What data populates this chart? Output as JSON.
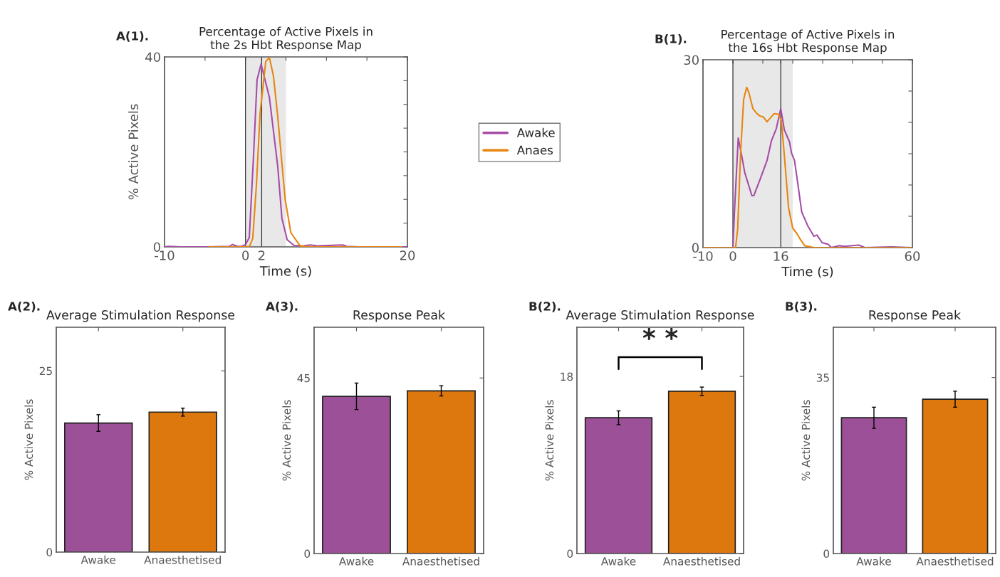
{
  "chart_data": [
    {
      "type": "line",
      "title": "Percentage of Active Pixels in\nthe 2s Hbt Response Map",
      "xlabel": "Time (s)",
      "ylabel": "% Active Pixels",
      "annotations": [
        "A(1)."
      ],
      "xlim": [
        -10,
        20
      ],
      "xticks": [
        -10,
        {
          "value": -5,
          "label": null
        },
        0,
        2,
        {
          "value": 5,
          "label": null
        },
        {
          "value": 10,
          "label": null
        },
        {
          "value": 15,
          "label": null
        },
        20
      ],
      "ylim": [
        0,
        40
      ],
      "yticks": [
        0,
        {
          "value": 5,
          "label": null
        },
        {
          "value": 10,
          "label": null
        },
        {
          "value": 15,
          "label": null
        },
        {
          "value": 20,
          "label": null
        },
        {
          "value": 25,
          "label": null
        },
        {
          "value": 30,
          "label": null
        },
        {
          "value": 35,
          "label": null
        },
        40
      ],
      "grid": false,
      "legend": "right",
      "ref_lines": [
        {
          "axis": "x",
          "value": 0,
          "color": "#333333"
        },
        {
          "axis": "x",
          "value": 2,
          "color": "#333333"
        }
      ],
      "bands": [
        {
          "axis": "x",
          "from": 0,
          "to": 5,
          "color": "#e8e8e8"
        }
      ],
      "series": [
        {
          "name": "Awake",
          "color": "#a64ca6",
          "x": [
            -10,
            -9.5,
            -8,
            -5,
            -2,
            -1.6,
            -1,
            -0.5,
            0,
            0.47,
            0.96,
            1.43,
            1.93,
            2.95,
            3.98,
            4.5,
            5.15,
            6,
            7,
            8,
            9,
            12,
            12.5,
            14,
            20
          ],
          "values": [
            0,
            0.1,
            0,
            0,
            0.1,
            0.5,
            0.1,
            0.1,
            0.5,
            2,
            18,
            35.2,
            38.5,
            31.5,
            17,
            6,
            1.5,
            0.3,
            0.2,
            0.4,
            0.2,
            0.4,
            0.1,
            0,
            0
          ]
        },
        {
          "name": "Anaes",
          "color": "#e8850f",
          "x": [
            -4.5,
            0,
            0.5,
            0.9,
            1.35,
            1.8,
            2.5,
            2.95,
            3.45,
            3.98,
            4.9,
            5.6,
            6.75,
            8,
            19.3
          ],
          "values": [
            0,
            0,
            0.1,
            1.8,
            13,
            28,
            39,
            39.9,
            36,
            27.5,
            10,
            3,
            0.2,
            0,
            0
          ]
        }
      ]
    },
    {
      "type": "line",
      "title": "Percentage of Active Pixels in\nthe 16s Hbt Response Map",
      "xlabel": "Time (s)",
      "annotations": [
        "B(1)."
      ],
      "xlim": [
        -10,
        60
      ],
      "xticks": [
        -10,
        0,
        {
          "value": 10,
          "label": null
        },
        16,
        {
          "value": 20,
          "label": null
        },
        {
          "value": 30,
          "label": null
        },
        {
          "value": 40,
          "label": null
        },
        {
          "value": 50,
          "label": null
        },
        60
      ],
      "ylim": [
        0,
        30
      ],
      "yticks": [
        0,
        {
          "value": 5,
          "label": null
        },
        {
          "value": 10,
          "label": null
        },
        {
          "value": 15,
          "label": null
        },
        {
          "value": 20,
          "label": null
        },
        {
          "value": 25,
          "label": null
        },
        30
      ],
      "grid": false,
      "ref_lines": [
        {
          "axis": "x",
          "value": 0,
          "color": "#333333"
        },
        {
          "axis": "x",
          "value": 16,
          "color": "#333333"
        }
      ],
      "bands": [
        {
          "axis": "x",
          "from": 0,
          "to": 20,
          "color": "#e8e8e8"
        }
      ],
      "series": [
        {
          "color": "#a64ca6",
          "x": [
            -10,
            0,
            0.55,
            1.78,
            2.93,
            3.95,
            6.34,
            7.0,
            9.4,
            11.4,
            12.9,
            14.5,
            16,
            17.2,
            18.9,
            19.6,
            20.6,
            21.7,
            23,
            25.1,
            27.1,
            28.1,
            29.8,
            31.9,
            32.9,
            35.6,
            37.3,
            42.1,
            44.1,
            53,
            59.8
          ],
          "values": [
            0,
            0,
            6,
            17.5,
            14.7,
            12,
            8.3,
            8.3,
            11.3,
            13.9,
            17.1,
            19,
            22.2,
            18.8,
            16.9,
            15.1,
            13.9,
            10.2,
            5.7,
            3.4,
            1.8,
            2,
            0.8,
            0.5,
            0,
            0.3,
            0.2,
            0.4,
            0,
            0.1,
            0
          ]
        },
        {
          "color": "#e8850f",
          "x": [
            -10,
            0.9,
            1.6,
            2.6,
            3.6,
            4.6,
            5.3,
            6.7,
            8,
            9.1,
            10.1,
            11.4,
            12.5,
            13.8,
            15.2,
            16.2,
            17.2,
            18.6,
            20,
            21.3,
            22.7,
            24,
            27.1,
            60
          ],
          "values": [
            0,
            0,
            3,
            15.4,
            23.7,
            25.6,
            24.8,
            22.2,
            21.4,
            21,
            20.9,
            20.1,
            20.7,
            21.4,
            21.3,
            20.3,
            14.7,
            6.4,
            3.1,
            2.3,
            1.2,
            0.3,
            0,
            0
          ]
        }
      ]
    },
    {
      "type": "bar",
      "title": "Average Stimulation Response",
      "ylabel": "% Active Pixels",
      "annotations": [
        "A(2)."
      ],
      "categories": [
        "Awake",
        "Anaesthetised"
      ],
      "values": [
        17.8,
        19.3
      ],
      "errors": [
        1.15,
        0.55
      ],
      "colors": [
        "#9c5098",
        "#dc780e"
      ],
      "ylim": [
        0,
        31
      ],
      "yticks": [
        0,
        25
      ],
      "grid": false
    },
    {
      "type": "bar",
      "title": "Response Peak",
      "ylabel": "% Active Pixels",
      "annotations": [
        "A(3)."
      ],
      "categories": [
        "Awake",
        "Anaesthetised"
      ],
      "values": [
        40.3,
        41.7
      ],
      "errors": [
        3.4,
        1.3
      ],
      "colors": [
        "#9c5098",
        "#dc780e"
      ],
      "ylim": [
        0,
        58
      ],
      "yticks": [
        0,
        45
      ],
      "grid": false
    },
    {
      "type": "bar",
      "title": "Average Stimulation Response",
      "ylabel": "% Active Pixels",
      "annotations": [
        "B(2).",
        {
          "text": "* *"
        }
      ],
      "categories": [
        "Awake",
        "Anaesthetised"
      ],
      "values": [
        13.8,
        16.5
      ],
      "errors": [
        0.7,
        0.42
      ],
      "colors": [
        "#9c5098",
        "#dc780e"
      ],
      "ylim": [
        0,
        23
      ],
      "yticks": [
        0,
        18
      ],
      "grid": false
    },
    {
      "type": "bar",
      "title": "Response Peak",
      "ylabel": "% Active Pixels",
      "annotations": [
        "B(3)."
      ],
      "categories": [
        "Awake",
        "Anaesthetised"
      ],
      "values": [
        27,
        30.7
      ],
      "errors": [
        2.1,
        1.6
      ],
      "colors": [
        "#9c5098",
        "#dc780e"
      ],
      "ylim": [
        0,
        45
      ],
      "yticks": [
        0,
        35
      ],
      "grid": false
    }
  ]
}
